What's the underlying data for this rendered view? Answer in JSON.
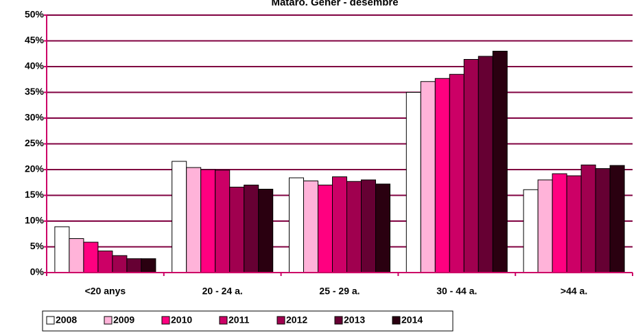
{
  "chart_data": {
    "type": "bar",
    "title": "Mataró. Gener - desembre",
    "categories": [
      "<20 anys",
      "20 - 24 a.",
      "25 - 29 a.",
      "30 - 44 a.",
      ">44 a."
    ],
    "series": [
      {
        "name": "2008",
        "color": "#ffffff",
        "values": [
          8.9,
          21.6,
          18.4,
          35.0,
          16.1
        ]
      },
      {
        "name": "2009",
        "color": "#ffb3d9",
        "values": [
          6.6,
          20.4,
          17.8,
          37.1,
          18.0
        ]
      },
      {
        "name": "2010",
        "color": "#ff0080",
        "values": [
          5.9,
          20.0,
          17.0,
          37.7,
          19.2
        ]
      },
      {
        "name": "2011",
        "color": "#cc0066",
        "values": [
          4.2,
          19.9,
          18.6,
          38.5,
          18.8
        ]
      },
      {
        "name": "2012",
        "color": "#a0004f",
        "values": [
          3.3,
          16.6,
          17.7,
          41.4,
          20.9
        ]
      },
      {
        "name": "2013",
        "color": "#660033",
        "values": [
          2.7,
          17.0,
          18.0,
          42.0,
          20.2
        ]
      },
      {
        "name": "2014",
        "color": "#2a0010",
        "values": [
          2.7,
          16.2,
          17.2,
          43.0,
          20.8
        ]
      }
    ],
    "ylim": [
      0,
      50
    ],
    "yticks": [
      {
        "value": 0,
        "label": "0%"
      },
      {
        "value": 5,
        "label": "5%"
      },
      {
        "value": 10,
        "label": "10%"
      },
      {
        "value": 15,
        "label": "15%"
      },
      {
        "value": 20,
        "label": "20%"
      },
      {
        "value": 25,
        "label": "25%"
      },
      {
        "value": 30,
        "label": "30%"
      },
      {
        "value": 35,
        "label": "35%"
      },
      {
        "value": 40,
        "label": "40%"
      },
      {
        "value": 45,
        "label": "45%"
      },
      {
        "value": 50,
        "label": "50%"
      }
    ],
    "grid": true
  }
}
